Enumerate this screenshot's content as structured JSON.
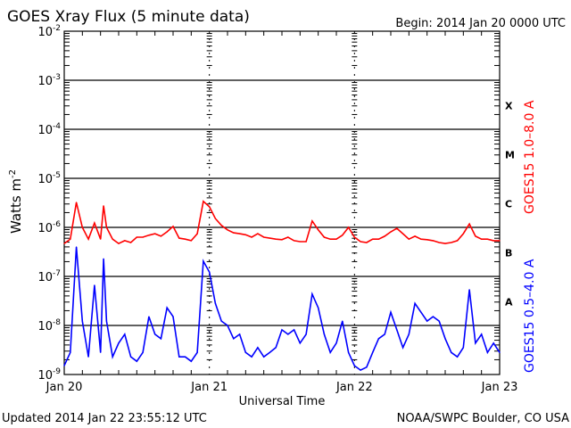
{
  "header": {
    "title": "GOES Xray Flux (5 minute data)",
    "begin": "Begin:  2014 Jan 20 0000 UTC"
  },
  "footer": {
    "updated": "Updated 2014 Jan 22 23:55:12 UTC",
    "credit": "NOAA/SWPC Boulder, CO USA"
  },
  "chart_data": {
    "type": "line",
    "title": "GOES Xray Flux (5 minute data)",
    "xlabel": "Universal Time",
    "ylabel": "Watts m",
    "ylabel_sup": "-2",
    "yscale": "log",
    "ylim_log10": [
      -9,
      -2
    ],
    "y_ticks": [
      {
        "base": "10",
        "exp": "-2"
      },
      {
        "base": "10",
        "exp": "-3"
      },
      {
        "base": "10",
        "exp": "-4"
      },
      {
        "base": "10",
        "exp": "-5"
      },
      {
        "base": "10",
        "exp": "-6"
      },
      {
        "base": "10",
        "exp": "-7"
      },
      {
        "base": "10",
        "exp": "-8"
      },
      {
        "base": "10",
        "exp": "-9"
      }
    ],
    "xlim_hours": [
      0,
      72
    ],
    "x_ticks": [
      {
        "label": "Jan 20",
        "hour": 0
      },
      {
        "label": "Jan 21",
        "hour": 24
      },
      {
        "label": "Jan 22",
        "hour": 48
      },
      {
        "label": "Jan 23",
        "hour": 72
      }
    ],
    "flare_classes": [
      {
        "label": "X",
        "log10_low": -4
      },
      {
        "label": "M",
        "log10_low": -5
      },
      {
        "label": "C",
        "log10_low": -6
      },
      {
        "label": "B",
        "log10_low": -7
      },
      {
        "label": "A",
        "log10_low": -8
      }
    ],
    "grid": true,
    "series": [
      {
        "name": "GOES15 1.0–8.0 A",
        "color": "#ff0000",
        "x_hours": [
          0,
          1,
          2,
          3,
          4,
          5,
          6,
          6.5,
          7,
          8,
          9,
          10,
          11,
          12,
          13,
          14,
          15,
          16,
          17,
          18,
          19,
          20,
          21,
          22,
          23,
          24,
          25,
          26,
          27,
          28,
          29,
          30,
          31,
          32,
          33,
          34,
          35,
          36,
          37,
          38,
          39,
          40,
          41,
          42,
          43,
          44,
          45,
          46,
          47,
          48,
          49,
          50,
          51,
          52,
          53,
          54,
          55,
          56,
          57,
          58,
          59,
          60,
          61,
          62,
          63,
          64,
          65,
          66,
          67,
          68,
          69,
          70,
          71,
          72
        ],
        "log10_flux": [
          -6.33,
          -6.24,
          -5.49,
          -6.0,
          -6.24,
          -5.91,
          -6.24,
          -5.56,
          -6.0,
          -6.24,
          -6.33,
          -6.27,
          -6.31,
          -6.2,
          -6.2,
          -6.16,
          -6.13,
          -6.18,
          -6.09,
          -5.98,
          -6.22,
          -6.24,
          -6.27,
          -6.13,
          -5.47,
          -5.58,
          -5.82,
          -5.96,
          -6.05,
          -6.11,
          -6.13,
          -6.15,
          -6.2,
          -6.13,
          -6.2,
          -6.22,
          -6.24,
          -6.25,
          -6.2,
          -6.27,
          -6.29,
          -6.29,
          -5.87,
          -6.05,
          -6.2,
          -6.24,
          -6.24,
          -6.16,
          -6.0,
          -6.2,
          -6.29,
          -6.31,
          -6.24,
          -6.24,
          -6.18,
          -6.09,
          -6.02,
          -6.13,
          -6.24,
          -6.18,
          -6.24,
          -6.25,
          -6.27,
          -6.31,
          -6.33,
          -6.31,
          -6.27,
          -6.13,
          -5.93,
          -6.18,
          -6.24,
          -6.24,
          -6.27,
          -6.27
        ]
      },
      {
        "name": "GOES15 0.5–4.0 A",
        "color": "#0000ff",
        "x_hours": [
          0,
          1,
          2,
          3,
          4,
          5,
          6,
          6.5,
          7,
          8,
          9,
          10,
          11,
          12,
          13,
          14,
          15,
          16,
          17,
          18,
          19,
          20,
          21,
          22,
          23,
          24,
          25,
          26,
          27,
          28,
          29,
          30,
          31,
          32,
          33,
          34,
          35,
          36,
          37,
          38,
          39,
          40,
          41,
          42,
          43,
          44,
          45,
          46,
          47,
          48,
          49,
          50,
          51,
          52,
          53,
          54,
          55,
          56,
          57,
          58,
          59,
          60,
          61,
          62,
          63,
          64,
          65,
          66,
          67,
          68,
          69,
          70,
          71,
          72
        ],
        "log10_flux": [
          -8.82,
          -8.55,
          -6.4,
          -7.91,
          -8.64,
          -7.18,
          -8.55,
          -6.64,
          -7.91,
          -8.64,
          -8.36,
          -8.18,
          -8.64,
          -8.73,
          -8.55,
          -7.82,
          -8.18,
          -8.27,
          -7.64,
          -7.82,
          -8.64,
          -8.64,
          -8.73,
          -8.55,
          -6.69,
          -6.91,
          -7.55,
          -7.91,
          -8.0,
          -8.27,
          -8.18,
          -8.55,
          -8.64,
          -8.45,
          -8.64,
          -8.55,
          -8.45,
          -8.09,
          -8.18,
          -8.09,
          -8.36,
          -8.18,
          -7.36,
          -7.64,
          -8.18,
          -8.55,
          -8.36,
          -7.91,
          -8.55,
          -8.82,
          -8.91,
          -8.85,
          -8.55,
          -8.27,
          -8.18,
          -7.73,
          -8.09,
          -8.45,
          -8.18,
          -7.55,
          -7.73,
          -7.91,
          -7.82,
          -7.91,
          -8.27,
          -8.55,
          -8.64,
          -8.45,
          -7.27,
          -8.36,
          -8.18,
          -8.55,
          -8.36,
          -8.55
        ]
      }
    ]
  }
}
